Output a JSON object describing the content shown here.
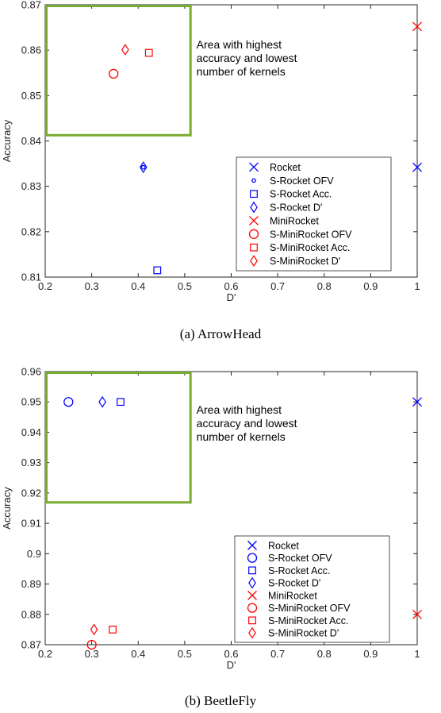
{
  "chart_data": [
    {
      "type": "scatter",
      "caption": "(a) ArrowHead",
      "xlabel": "D'",
      "ylabel": "Accuracy",
      "xlim": [
        0.2,
        1.0
      ],
      "ylim": [
        0.81,
        0.87
      ],
      "xticks": [
        "0.2",
        "0.3",
        "0.4",
        "0.5",
        "0.6",
        "0.7",
        "0.8",
        "0.9",
        "1"
      ],
      "yticks": [
        "0.81",
        "0.82",
        "0.83",
        "0.84",
        "0.85",
        "0.86",
        "0.87"
      ],
      "grid": false,
      "legend_position": "lower-right",
      "highlight": {
        "text": [
          "Area with highest",
          "accuracy and lowest",
          "number of kernels"
        ],
        "color": "#77ac30",
        "x_range": [
          0.2,
          0.515
        ],
        "y_range": [
          0.841,
          0.87
        ]
      },
      "series": [
        {
          "name": "Rocket",
          "marker": "x",
          "color": "#0000ff",
          "points": [
            [
              1.0,
              0.8342
            ]
          ]
        },
        {
          "name": "S-Rocket OFV",
          "marker": "dot",
          "color": "#0000ff",
          "points": [
            [
              0.411,
              0.8342
            ]
          ]
        },
        {
          "name": "S-Rocket Acc.",
          "marker": "square",
          "color": "#0000ff",
          "points": [
            [
              0.441,
              0.8115
            ]
          ]
        },
        {
          "name": "S-Rocket D'",
          "marker": "diamond",
          "color": "#0000ff",
          "points": [
            [
              0.411,
              0.8342
            ]
          ]
        },
        {
          "name": "MiniRocket",
          "marker": "x",
          "color": "#ff0000",
          "points": [
            [
              1.0,
              0.8652
            ]
          ]
        },
        {
          "name": "S-MiniRocket OFV",
          "marker": "circle",
          "color": "#ff0000",
          "points": [
            [
              0.347,
              0.8548
            ]
          ]
        },
        {
          "name": "S-MiniRocket Acc.",
          "marker": "square",
          "color": "#ff0000",
          "points": [
            [
              0.423,
              0.8594
            ]
          ]
        },
        {
          "name": "S-MiniRocket D'",
          "marker": "diamond",
          "color": "#ff0000",
          "points": [
            [
              0.372,
              0.8601
            ]
          ]
        }
      ]
    },
    {
      "type": "scatter",
      "caption": "(b) BeetleFly",
      "xlabel": "D'",
      "ylabel": "Accuracy",
      "xlim": [
        0.2,
        1.0
      ],
      "ylim": [
        0.87,
        0.96
      ],
      "xticks": [
        "0.2",
        "0.3",
        "0.4",
        "0.5",
        "0.6",
        "0.7",
        "0.8",
        "0.9",
        "1"
      ],
      "yticks": [
        "0.87",
        "0.88",
        "0.89",
        "0.9",
        "0.91",
        "0.92",
        "0.93",
        "0.94",
        "0.95",
        "0.96"
      ],
      "grid": false,
      "legend_position": "lower-right",
      "highlight": {
        "text": [
          "Area with highest",
          "accuracy and lowest",
          "number of kernels"
        ],
        "color": "#77ac30",
        "x_range": [
          0.2,
          0.515
        ],
        "y_range": [
          0.9165,
          0.96
        ]
      },
      "series": [
        {
          "name": "Rocket",
          "marker": "x",
          "color": "#0000ff",
          "points": [
            [
              1.0,
              0.95
            ]
          ]
        },
        {
          "name": "S-Rocket OFV",
          "marker": "circle",
          "color": "#0000ff",
          "points": [
            [
              0.25,
              0.95
            ]
          ]
        },
        {
          "name": "S-Rocket Acc.",
          "marker": "square",
          "color": "#0000ff",
          "points": [
            [
              0.362,
              0.95
            ]
          ]
        },
        {
          "name": "S-Rocket D'",
          "marker": "diamond",
          "color": "#0000ff",
          "points": [
            [
              0.323,
              0.95
            ]
          ]
        },
        {
          "name": "MiniRocket",
          "marker": "x",
          "color": "#ff0000",
          "points": [
            [
              1.0,
              0.88
            ]
          ]
        },
        {
          "name": "S-MiniRocket OFV",
          "marker": "circle",
          "color": "#ff0000",
          "points": [
            [
              0.3,
              0.87
            ]
          ]
        },
        {
          "name": "S-MiniRocket Acc.",
          "marker": "square",
          "color": "#ff0000",
          "points": [
            [
              0.345,
              0.875
            ]
          ]
        },
        {
          "name": "S-MiniRocket D'",
          "marker": "diamond",
          "color": "#ff0000",
          "points": [
            [
              0.305,
              0.875
            ]
          ]
        }
      ]
    }
  ]
}
